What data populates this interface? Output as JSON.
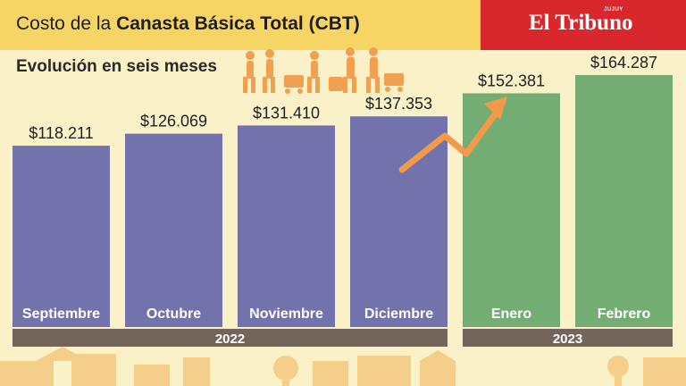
{
  "header": {
    "title_prefix": "Costo de la ",
    "title_bold": "Canasta Básica Total (CBT)",
    "logo": "El Tribuno",
    "logo_small": "JUJUY"
  },
  "subtitle": "Evolución en seis meses",
  "colors": {
    "header": "#f7d564",
    "logo_bg": "#d9272e",
    "bar_2022": "#7272ad",
    "bar_2023": "#74ad74",
    "year_band": "#73655c",
    "arrow": "#f29a4a",
    "background": "#fbf1c9"
  },
  "chart_data": {
    "type": "bar",
    "title": "Costo de la Canasta Básica Total (CBT)",
    "subtitle": "Evolución en seis meses",
    "categories": [
      "Septiembre",
      "Octubre",
      "Noviembre",
      "Diciembre",
      "Enero",
      "Febrero"
    ],
    "values": [
      118211,
      126069,
      131410,
      137353,
      152381,
      164287
    ],
    "value_labels": [
      "$118.211",
      "$126.069",
      "$131.410",
      "$137.353",
      "$152.381",
      "$164.287"
    ],
    "year_groups": [
      {
        "label": "2022",
        "categories": [
          "Septiembre",
          "Octubre",
          "Noviembre",
          "Diciembre"
        ]
      },
      {
        "label": "2023",
        "categories": [
          "Enero",
          "Febrero"
        ]
      }
    ],
    "xlabel": "",
    "ylabel": ""
  }
}
